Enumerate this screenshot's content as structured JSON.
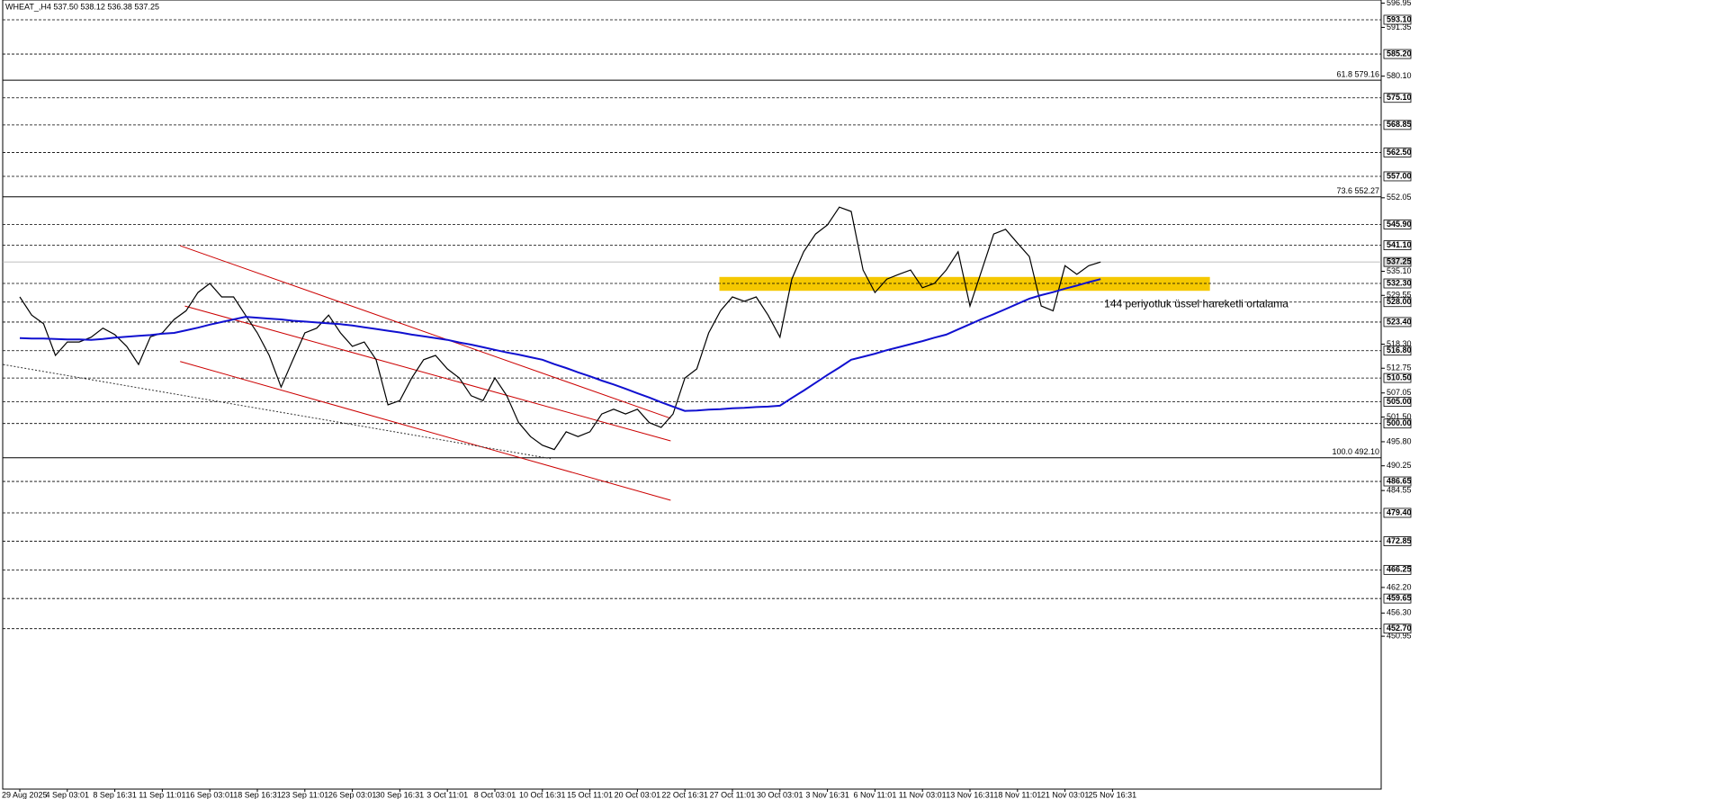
{
  "chart_data": {
    "type": "line",
    "title": "WHEAT_,H4  537.50 538.12 536.38 537.25",
    "categories": [
      "29 Aug 2025",
      null,
      null,
      null,
      "4 Sep 03:01",
      null,
      null,
      null,
      "8 Sep 16:31",
      null,
      null,
      null,
      "11 Sep 11:01",
      null,
      null,
      null,
      "16 Sep 03:01",
      null,
      null,
      null,
      "18 Sep 16:31",
      null,
      null,
      null,
      "23 Sep 11:01",
      null,
      null,
      null,
      "26 Sep 03:01",
      null,
      null,
      null,
      "30 Sep 16:31",
      null,
      null,
      null,
      "3 Oct 11:01",
      null,
      null,
      null,
      "8 Oct 03:01",
      null,
      null,
      null,
      "10 Oct 16:31",
      null,
      null,
      null,
      "15 Oct 11:01",
      null,
      null,
      null,
      "20 Oct 03:01",
      null,
      null,
      null,
      "22 Oct 16:31",
      null,
      null,
      null,
      "27 Oct 11:01",
      null,
      null,
      null,
      "30 Oct 03:01",
      null,
      null,
      null,
      "3 Nov 16:31",
      null,
      null,
      null,
      "6 Nov 11:01",
      null,
      null,
      null,
      "11 Nov 03:01",
      null,
      null,
      null,
      "13 Nov 16:31",
      null,
      null,
      null,
      "18 Nov 11:01",
      null,
      null,
      null,
      "21 Nov 03:01",
      null,
      null,
      null,
      "25 Nov 16:31"
    ],
    "series": [
      {
        "color": "#000000",
        "values": [
          529.2,
          525,
          523,
          515.7,
          518.8,
          518.8,
          519.9,
          522,
          520.5,
          517.8,
          513.6,
          520,
          520.9,
          524,
          526,
          530.2,
          532.3,
          529.2,
          529.2,
          525,
          520.9,
          515.7,
          508.4,
          514.7,
          520.9,
          522,
          525,
          520.9,
          517.8,
          518.8,
          514.7,
          504.3,
          505.3,
          510.5,
          514.7,
          515.7,
          512.6,
          510.5,
          506.4,
          505.3,
          510.5,
          506.4,
          500.2,
          497,
          495,
          494,
          498.1,
          497,
          498.1,
          502.2,
          503.3,
          502.2,
          503.3,
          500.2,
          499.1,
          502.2,
          510.5,
          512.6,
          520.9,
          526,
          529.2,
          528.2,
          529.2,
          525,
          519.9,
          533.3,
          539.6,
          543.7,
          545.8,
          549.9,
          548.9,
          535.4,
          530.2,
          533.3,
          534.4,
          535.4,
          531.3,
          532.3,
          535.4,
          539.6,
          527.1,
          535.4,
          543.7,
          544.8,
          541.6,
          538.5,
          527.1,
          526,
          536.4,
          534.4,
          536.4,
          537.25,
          null
        ]
      },
      {
        "color": "#1010d0",
        "values": [
          519.7,
          519.6,
          519.6,
          519.5,
          519.4,
          519.4,
          519.3,
          519.5,
          519.8,
          520.0,
          520.2,
          520.4,
          520.7,
          520.9,
          521.5,
          522.1,
          522.8,
          523.4,
          524.0,
          524.6,
          524.4,
          524.2,
          524.0,
          523.7,
          523.5,
          523.3,
          523.1,
          522.9,
          522.6,
          522.2,
          521.8,
          521.4,
          521.0,
          520.5,
          520.1,
          519.7,
          519.3,
          518.7,
          518.2,
          517.6,
          517.0,
          516.4,
          515.9,
          515.3,
          514.7,
          513.7,
          512.8,
          511.8,
          510.9,
          509.9,
          509.0,
          508.0,
          507.0,
          506.0,
          504.9,
          503.9,
          502.9,
          503.0,
          503.2,
          503.3,
          503.5,
          503.6,
          503.8,
          503.9,
          504.1,
          505.9,
          507.6,
          509.4,
          511.2,
          512.9,
          514.7,
          515.4,
          516.1,
          516.9,
          517.6,
          518.3,
          519.0,
          519.8,
          520.5,
          521.7,
          522.9,
          524.1,
          525.2,
          526.4,
          527.6,
          528.8,
          529.6,
          530.3,
          531.1,
          531.8,
          532.6,
          533.3,
          null
        ]
      }
    ],
    "ylim": [
      415.7,
      597.66
    ],
    "yticks": [
      596.95,
      591.35,
      {
        "value": 580.1,
        "label": "580.10"
      },
      552.05,
      {
        "value": 535.1,
        "label": "535.10"
      },
      529.55,
      {
        "value": 518.3,
        "label": "518.30"
      },
      512.75,
      507.05,
      {
        "value": 501.5,
        "label": "501.50"
      },
      {
        "value": 495.8,
        "label": "495.80"
      },
      490.25,
      484.55,
      {
        "value": 462.2,
        "label": "462.20"
      },
      {
        "value": 456.3,
        "label": "456.30"
      },
      450.95
    ],
    "levels": {
      "values": [
        593.1,
        585.2,
        575.1,
        568.85,
        562.5,
        557,
        545.9,
        541.1,
        532.3,
        528,
        523.4,
        516.8,
        510.5,
        505,
        500,
        486.65,
        479.4,
        472.85,
        466.25,
        459.65,
        452.7
      ],
      "value_labels": [
        "593.10",
        "585.20",
        "575.10",
        "568.85",
        "562.50",
        "557.00",
        "545.90",
        "541.10",
        "532.30",
        "528.00",
        "523.40",
        "516.80",
        "510.50",
        "505.00",
        "500.00",
        "486.65",
        "479.40",
        "472.85",
        "466.25",
        "459.65",
        "452.70"
      ]
    },
    "price_line": {
      "value": 537.25,
      "label": "537.25"
    },
    "fib_levels": [
      {
        "value": 579.16,
        "label": "61.8 579.16"
      },
      {
        "value": 552.27,
        "label": "73.6 552.27"
      },
      {
        "value": 492.1,
        "label": "100.0 492.10"
      }
    ],
    "channel_lines": [
      {
        "color": "#cc0000",
        "from": [
          13.5,
          541.0
        ],
        "to": [
          54.8,
          501.2
        ]
      },
      {
        "color": "#cc0000",
        "from": [
          13.9,
          527.1
        ],
        "to": [
          54.8,
          496.0
        ]
      },
      {
        "color": "#cc0000",
        "from": [
          13.5,
          514.3
        ],
        "to": [
          54.8,
          482.3
        ]
      },
      {
        "color": "#333333",
        "from": [
          -1.4,
          513.6
        ],
        "to": [
          44.7,
          491.9
        ],
        "dashed": true
      }
    ],
    "zone": {
      "color": "#f5c800",
      "from": [
        58.9,
        533.8
      ],
      "to": [
        100.2,
        530.6
      ]
    },
    "annotation": {
      "text": "144 periyotluk üssel hareketli ortalama",
      "at": [
        91.3,
        527.5
      ],
      "color": "#1a1ad0"
    }
  }
}
